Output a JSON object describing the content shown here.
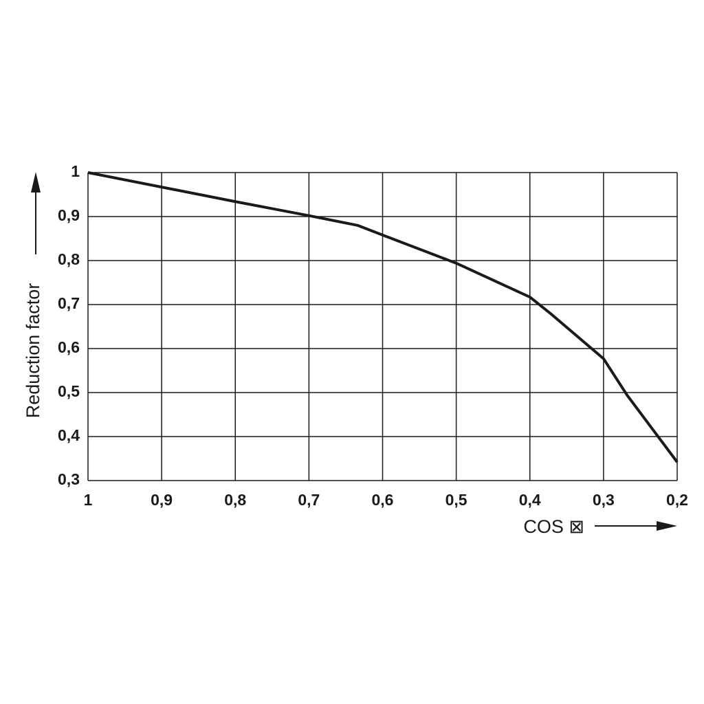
{
  "chart_data": {
    "type": "line",
    "x_label": "COS ⊠",
    "y_label": "Reduction factor",
    "x": [
      1,
      0.9,
      0.8,
      0.7,
      0.634,
      0.6,
      0.5,
      0.4,
      0.373,
      0.3,
      0.268,
      0.2
    ],
    "series": [
      {
        "color": "#1a1a1a",
        "values": [
          1,
          0.967,
          0.934,
          0.902,
          0.88,
          0.858,
          0.794,
          0.717,
          0.681,
          0.577,
          0.494,
          0.342
        ]
      }
    ],
    "xlim": [
      1,
      0.2
    ],
    "xticks": [
      1,
      {
        "value": 0.9,
        "label": "0,9"
      },
      {
        "value": 0.8,
        "label": "0,8"
      },
      {
        "value": 0.7,
        "label": "0,7"
      },
      {
        "value": 0.6,
        "label": "0,6"
      },
      {
        "value": 0.5,
        "label": "0,5"
      },
      {
        "value": 0.4,
        "label": "0,4"
      },
      {
        "value": 0.3,
        "label": "0,3"
      },
      {
        "value": 0.2,
        "label": "0,2"
      }
    ],
    "ylim": [
      0.3,
      1
    ],
    "yticks": [
      {
        "value": 0.3,
        "label": "0,3"
      },
      {
        "value": 0.4,
        "label": "0,4"
      },
      {
        "value": 0.5,
        "label": "0,5"
      },
      {
        "value": 0.6,
        "label": "0,6"
      },
      {
        "value": 0.7,
        "label": "0,7"
      },
      {
        "value": 0.8,
        "label": "0,8"
      },
      {
        "value": 0.9,
        "label": "0,9"
      },
      1
    ],
    "grid": true
  }
}
